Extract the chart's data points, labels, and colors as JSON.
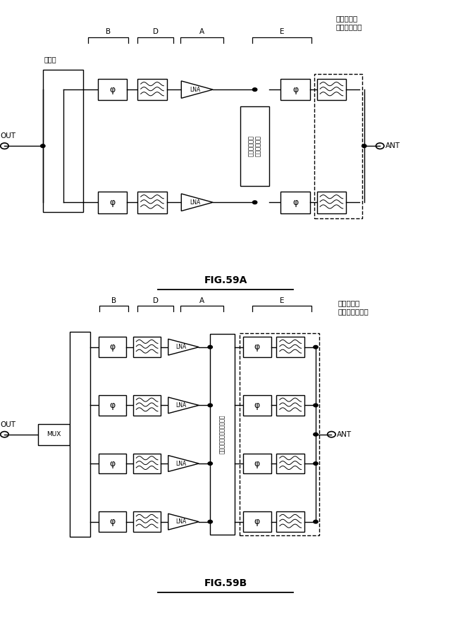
{
  "fig_width": 6.4,
  "fig_height": 8.83,
  "title_a": "FIG.59A",
  "title_b": "FIG.59B",
  "label_B": "B",
  "label_D": "D",
  "label_A": "A",
  "label_E": "E",
  "label_coupler_a": "結合器",
  "label_filter_a": "フィルタ／\nダイプレクサ",
  "label_switch_a": "スイッチング\nネットワーク",
  "label_switch_b": "スイッチングネットワーク",
  "label_filter_b": "フィルタ／\nマルチプレクサ",
  "label_out": "OUT",
  "label_ant": "ANT",
  "label_mux": "MUX",
  "label_phi": "φ",
  "label_lna": "LNA"
}
